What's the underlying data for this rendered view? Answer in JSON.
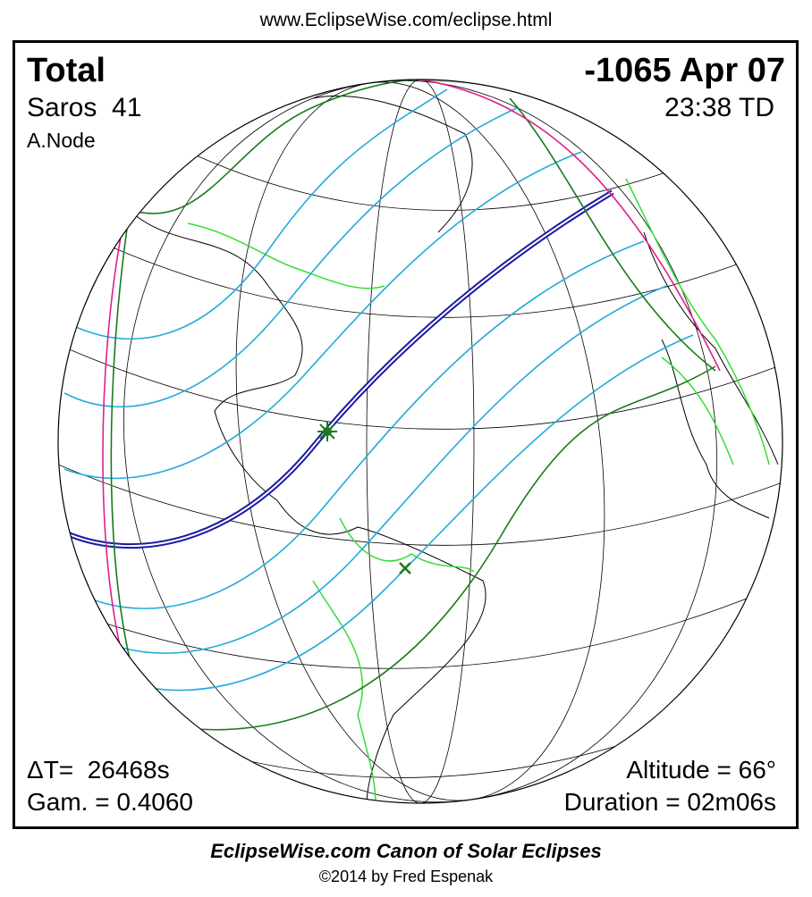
{
  "header": {
    "url": "www.EclipseWise.com/eclipse.html"
  },
  "info": {
    "type": "Total",
    "date": "-1065 Apr 07",
    "saros": "Saros  41",
    "node": "A.Node",
    "time": "23:38 TD",
    "delta_t": "ΔT=  26468s",
    "gamma": "Gam. = 0.4060",
    "altitude": "Altitude = 66°",
    "duration": "Duration = 02m06s"
  },
  "footer": {
    "title": "EclipseWise.com Canon of Solar Eclipses",
    "copyright": "©2014 by Fred Espenak"
  }
}
